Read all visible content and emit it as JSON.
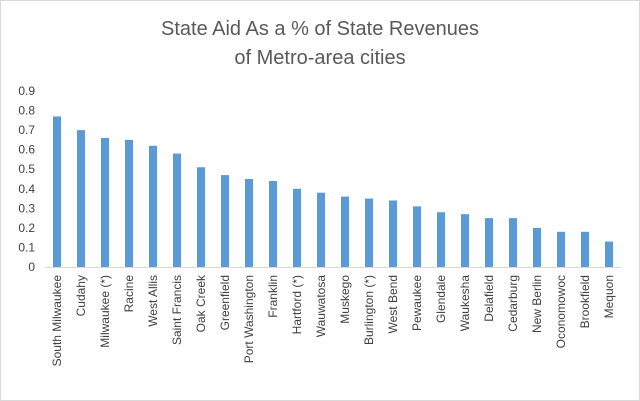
{
  "chart_data": {
    "type": "bar",
    "title_lines": [
      "State Aid As a % of State Revenues",
      "of Metro-area cities"
    ],
    "xlabel": "",
    "ylabel": "",
    "ylim": [
      0,
      0.9
    ],
    "yticks": [
      "0",
      "0.1",
      "0.2",
      "0.3",
      "0.4",
      "0.5",
      "0.6",
      "0.7",
      "0.8",
      "0.9"
    ],
    "grid": false,
    "bar_color": "#5b9bd5",
    "categories": [
      "South Milwaukee",
      "Cudahy",
      "Milwaukee (*)",
      "Racine",
      "West Allis",
      "Saint Francis",
      "Oak Creek",
      "Greenfield",
      "Port Washington",
      "Franklin",
      "Hartford (*)",
      "Wauwatosa",
      "Muskego",
      "Burlington (*)",
      "West Bend",
      "Pewaukee",
      "Glendale",
      "Waukesha",
      "Delafield",
      "Cedarburg",
      "New Berlin",
      "Oconomowoc",
      "Brookfield",
      "Mequon"
    ],
    "values": [
      0.77,
      0.7,
      0.66,
      0.65,
      0.62,
      0.58,
      0.51,
      0.47,
      0.45,
      0.44,
      0.4,
      0.38,
      0.36,
      0.35,
      0.34,
      0.31,
      0.28,
      0.27,
      0.25,
      0.25,
      0.2,
      0.18,
      0.18,
      0.13
    ]
  }
}
